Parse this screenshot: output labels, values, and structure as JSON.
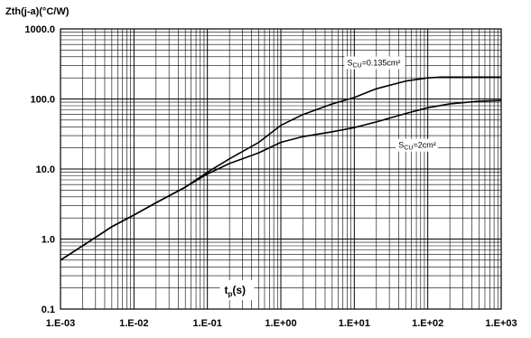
{
  "chart_data": {
    "type": "line",
    "title": "Zth(j-a)(°C/W)",
    "xlabel": "tp(s)",
    "xlabel_main": "t",
    "xlabel_sub": "p",
    "xlabel_suffix": "(s)",
    "ylabel": "Zth(j-a)(°C/W)",
    "x_scale": "log",
    "y_scale": "log",
    "xlim": [
      0.001,
      1000
    ],
    "ylim": [
      0.1,
      1000
    ],
    "grid": true,
    "x_ticks": [
      {
        "value": 0.001,
        "label": "1.E-03"
      },
      {
        "value": 0.01,
        "label": "1.E-02"
      },
      {
        "value": 0.1,
        "label": "1.E-01"
      },
      {
        "value": 1,
        "label": "1.E+00"
      },
      {
        "value": 10,
        "label": "1.E+01"
      },
      {
        "value": 100,
        "label": "1.E+02"
      },
      {
        "value": 1000,
        "label": "1.E+03"
      }
    ],
    "y_ticks": [
      {
        "value": 0.1,
        "label": "0.1"
      },
      {
        "value": 1,
        "label": "1.0"
      },
      {
        "value": 10,
        "label": "10.0"
      },
      {
        "value": 100,
        "label": "100.0"
      },
      {
        "value": 1000,
        "label": "1000.0"
      }
    ],
    "series": [
      {
        "name": "SCU=0.135cm²",
        "label_main": "S",
        "label_sub": "CU",
        "label_suffix": "=0.135cm²",
        "label_anchor": {
          "x": 8,
          "y": 300
        },
        "x": [
          0.001,
          0.002,
          0.005,
          0.01,
          0.02,
          0.05,
          0.1,
          0.2,
          0.5,
          1,
          2,
          5,
          10,
          20,
          50,
          100,
          150,
          200,
          500,
          1000
        ],
        "y": [
          0.5,
          0.8,
          1.5,
          2.2,
          3.3,
          5.5,
          9.0,
          14,
          24,
          42,
          60,
          85,
          105,
          140,
          180,
          200,
          205,
          205,
          205,
          205
        ]
      },
      {
        "name": "SCU=2cm²",
        "label_main": "S",
        "label_sub": "CU",
        "label_suffix": "=2cm²",
        "label_anchor": {
          "x": 40,
          "y": 20
        },
        "x": [
          0.001,
          0.002,
          0.005,
          0.01,
          0.02,
          0.05,
          0.1,
          0.2,
          0.5,
          1,
          2,
          5,
          10,
          20,
          50,
          100,
          200,
          500,
          1000
        ],
        "y": [
          0.5,
          0.8,
          1.5,
          2.2,
          3.3,
          5.5,
          8.5,
          12,
          17,
          24,
          29,
          34,
          39,
          47,
          62,
          75,
          85,
          93,
          95
        ]
      }
    ]
  }
}
